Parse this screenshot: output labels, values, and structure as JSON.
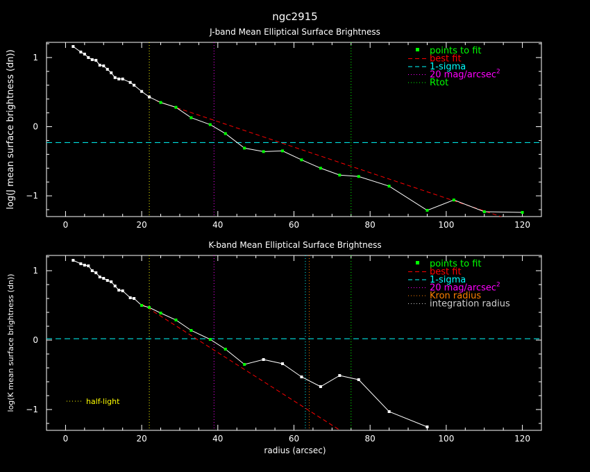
{
  "figure_title": "ngc2915",
  "xlabel": "radius (arcsec)",
  "chart_data": [
    {
      "type": "line",
      "title": "J-band Mean Elliptical Surface Brightness",
      "ylabel": "log(J mean surface brightness (dn))",
      "xlim": [
        -5,
        125
      ],
      "ylim": [
        -1.3,
        1.22
      ],
      "x_ticks": [
        "0",
        "20",
        "40",
        "60",
        "80",
        "100",
        "120"
      ],
      "y_ticks": [
        "-1",
        "0",
        "1"
      ],
      "legend_position": "top-right",
      "legend": [
        {
          "label": "points to fit",
          "color": "#00ff00",
          "style": "dot"
        },
        {
          "label": "best fit",
          "color": "#ff0000",
          "style": "dash"
        },
        {
          "label": "1-sigma",
          "color": "#00ffff",
          "style": "dash"
        },
        {
          "label": "20 mag/arcsec",
          "sup": "2",
          "color": "#ff00ff",
          "style": "dot"
        },
        {
          "label": "Rtot",
          "color": "#00ff00",
          "style": "dot"
        }
      ],
      "series": [
        {
          "x": [
            2,
            4,
            5,
            6,
            7,
            8,
            9,
            10,
            11,
            12,
            13,
            14,
            15,
            17,
            18,
            20,
            22,
            25,
            29,
            33,
            38,
            42,
            47,
            52,
            57,
            62,
            67,
            72,
            77,
            85,
            95,
            102,
            110,
            120
          ],
          "y": [
            1.16,
            1.08,
            1.05,
            1.0,
            0.97,
            0.96,
            0.89,
            0.88,
            0.83,
            0.78,
            0.71,
            0.69,
            0.69,
            0.64,
            0.6,
            0.51,
            0.43,
            0.35,
            0.28,
            0.13,
            0.03,
            -0.1,
            -0.31,
            -0.36,
            -0.35,
            -0.48,
            -0.6,
            -0.7,
            -0.72,
            -0.86,
            -1.21,
            -1.06,
            -1.23,
            -1.24
          ],
          "fit_points_x": [
            25,
            29,
            33,
            38,
            42,
            47,
            52,
            57,
            62,
            67,
            72,
            77,
            85,
            95,
            102,
            110,
            120
          ],
          "best_fit": {
            "x": [
              24,
              116
            ],
            "y": [
              0.37,
              -1.33
            ]
          },
          "sigma_level": -0.23,
          "mag20_radius": 39,
          "rtot_radius": 75,
          "halflight_radius": 22
        }
      ]
    },
    {
      "type": "line",
      "title": "K-band Mean Elliptical Surface Brightness",
      "ylabel": "log(K mean surface brightness (dn))",
      "xlim": [
        -5,
        125
      ],
      "ylim": [
        -1.3,
        1.22
      ],
      "x_ticks": [
        "0",
        "20",
        "40",
        "60",
        "80",
        "100",
        "120"
      ],
      "y_ticks": [
        "-1",
        "0",
        "1"
      ],
      "legend_position": "top-right",
      "legend": [
        {
          "label": "points to fit",
          "color": "#00ff00",
          "style": "dot"
        },
        {
          "label": "best fit",
          "color": "#ff0000",
          "style": "dash"
        },
        {
          "label": "1-sigma",
          "color": "#00ffff",
          "style": "dash"
        },
        {
          "label": "20 mag/arcsec",
          "sup": "2",
          "color": "#ff00ff",
          "style": "dot"
        },
        {
          "label": "Kron radius",
          "color": "#ff8000",
          "style": "dot"
        },
        {
          "label": "integration radius",
          "color": "#cfcfcf",
          "style": "dot"
        }
      ],
      "annotation": {
        "label": "half-light",
        "color": "#ffff00"
      },
      "series": [
        {
          "x": [
            2,
            4,
            5,
            6,
            7,
            8,
            9,
            10,
            11,
            12,
            13,
            14,
            15,
            17,
            18,
            20,
            22,
            25,
            29,
            33,
            38,
            42,
            47,
            52,
            57,
            62,
            67,
            72,
            77,
            85,
            95
          ],
          "y": [
            1.15,
            1.1,
            1.08,
            1.07,
            1.0,
            0.97,
            0.91,
            0.89,
            0.86,
            0.84,
            0.78,
            0.72,
            0.71,
            0.61,
            0.6,
            0.5,
            0.47,
            0.39,
            0.29,
            0.14,
            0.01,
            -0.13,
            -0.35,
            -0.28,
            -0.34,
            -0.53,
            -0.67,
            -0.51,
            -0.57,
            -1.03,
            -1.25
          ],
          "fit_points_x": [
            20,
            22,
            25,
            29,
            33,
            38,
            42,
            47
          ],
          "best_fit": {
            "x": [
              20,
              73
            ],
            "y": [
              0.52,
              -1.33
            ]
          },
          "sigma_level": 0.02,
          "mag20_radius": 39,
          "kron_radius": 64,
          "integration_radius": 63,
          "rtot_radius": 75,
          "halflight_radius": 22
        }
      ]
    }
  ]
}
